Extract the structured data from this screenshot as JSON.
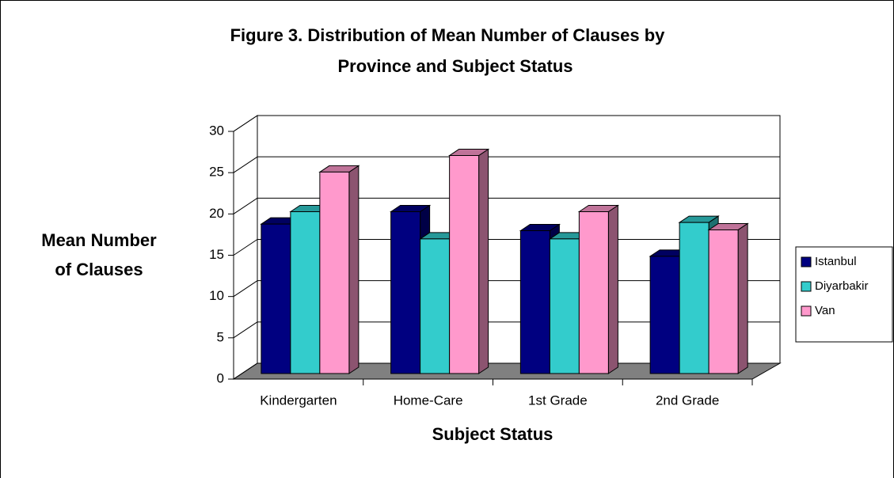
{
  "chart_data": {
    "type": "bar3d",
    "title": [
      "Figure 3. Distribution of Mean Number of Clauses by",
      "Province and Subject Status"
    ],
    "y_label": [
      "Mean Number",
      "of Clauses"
    ],
    "x_label": "Subject Status",
    "categories": [
      "Kindergarten",
      "Home-Care",
      "1st Grade",
      "2nd Grade"
    ],
    "series": [
      {
        "name": "Istanbul",
        "color": "#000080",
        "values": [
          18.1,
          19.6,
          17.3,
          14.2
        ]
      },
      {
        "name": "Diyarbakir",
        "color": "#33cccc",
        "values": [
          19.6,
          16.3,
          16.3,
          18.3
        ]
      },
      {
        "name": "Van",
        "color": "#ff99cc",
        "values": [
          24.4,
          26.4,
          19.6,
          17.4
        ]
      }
    ],
    "ylim": [
      0,
      30
    ],
    "yticks": [
      0,
      5,
      10,
      15,
      20,
      25,
      30
    ],
    "grid": true,
    "legend": "right"
  }
}
